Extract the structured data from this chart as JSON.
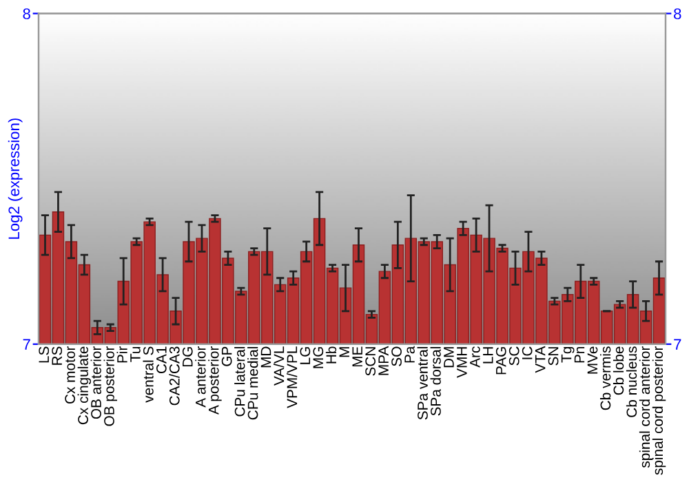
{
  "chart_data": {
    "type": "bar",
    "ylabel": "Log2 (expression)",
    "categories": [
      "LS",
      "RS",
      "Cx motor",
      "Cx cingulate",
      "OB anterior",
      "OB posterior",
      "Pir",
      "Tu",
      "ventral S",
      "CA1",
      "CA2/CA3",
      "DG",
      "A anterior",
      "A posterior",
      "GP",
      "CPu lateral",
      "CPu medial",
      "MD",
      "VA/VL",
      "VPM/VPL",
      "LG",
      "MG",
      "Hb",
      "M",
      "ME",
      "SCN",
      "MPA",
      "SO",
      "Pa",
      "SPa ventral",
      "SPa dorsal",
      "DM",
      "VMH",
      "Arc",
      "LH",
      "PAG",
      "SC",
      "IC",
      "VTA",
      "SN",
      "Tg",
      "Pn",
      "MVe",
      "Cb vermis",
      "Cb lobe",
      "Cb nucleus",
      "spinal cord anterior",
      "spinal cord posterior"
    ],
    "values": [
      7.33,
      7.4,
      7.31,
      7.24,
      7.05,
      7.05,
      7.19,
      7.31,
      7.37,
      7.21,
      7.1,
      7.31,
      7.32,
      7.38,
      7.26,
      7.16,
      7.28,
      7.28,
      7.18,
      7.2,
      7.28,
      7.38,
      7.23,
      7.17,
      7.3,
      7.09,
      7.22,
      7.3,
      7.32,
      7.31,
      7.31,
      7.24,
      7.35,
      7.33,
      7.32,
      7.29,
      7.23,
      7.28,
      7.26,
      7.13,
      7.15,
      7.19,
      7.19,
      7.1,
      7.12,
      7.15,
      7.1,
      7.2
    ],
    "errors": [
      0.06,
      0.06,
      0.05,
      0.03,
      0.02,
      0.01,
      0.07,
      0.01,
      0.01,
      0.05,
      0.04,
      0.06,
      0.04,
      0.01,
      0.02,
      0.01,
      0.01,
      0.07,
      0.02,
      0.02,
      0.03,
      0.08,
      0.01,
      0.07,
      0.05,
      0.01,
      0.02,
      0.07,
      0.13,
      0.01,
      0.02,
      0.08,
      0.02,
      0.05,
      0.1,
      0.01,
      0.05,
      0.06,
      0.02,
      0.01,
      0.02,
      0.05,
      0.01,
      0.0,
      0.01,
      0.04,
      0.03,
      0.05
    ],
    "color": "#b83232",
    "ylim": [
      7,
      8
    ],
    "yticks": [
      7,
      8
    ],
    "y2lim": [
      7,
      8
    ],
    "y2ticks": [
      7,
      8
    ],
    "grid": false,
    "legend": false
  }
}
